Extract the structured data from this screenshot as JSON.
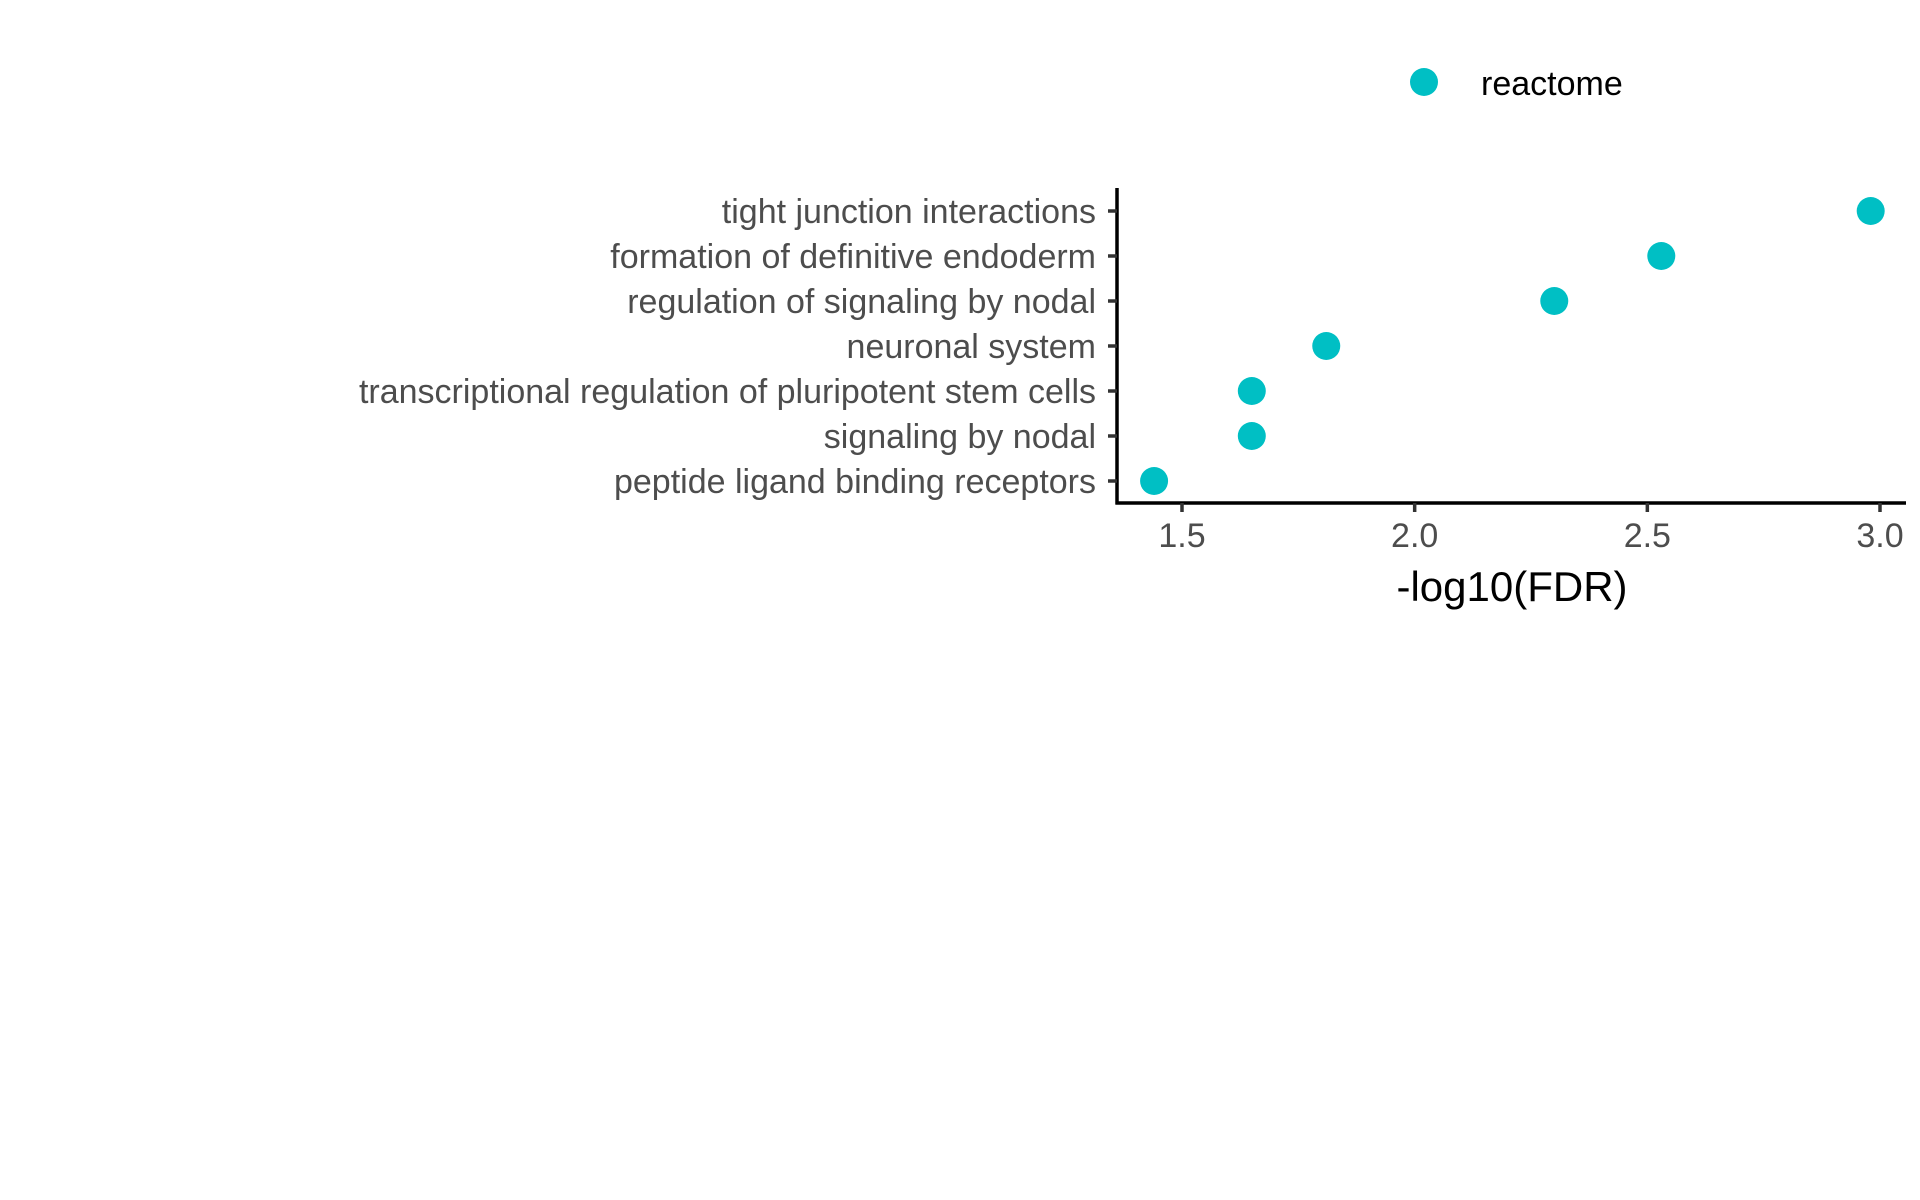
{
  "chart_data": {
    "type": "scatter",
    "xlabel": "-log10(FDR)",
    "ylabel": "",
    "title": "",
    "xlim": [
      1.36,
      3.05
    ],
    "x_ticks": [
      "1.5",
      "2.0",
      "2.5",
      "3.0"
    ],
    "categories": [
      "tight junction interactions",
      "formation of definitive endoderm",
      "regulation of signaling by nodal",
      "neuronal system",
      "transcriptional regulation of pluripotent stem cells",
      "signaling by nodal",
      "peptide ligand binding receptors"
    ],
    "series": [
      {
        "name": "reactome",
        "color": "#00BFC4",
        "values": [
          2.98,
          2.53,
          2.3,
          1.81,
          1.65,
          1.65,
          1.44
        ]
      }
    ],
    "legend_position": "top",
    "grid": false
  }
}
